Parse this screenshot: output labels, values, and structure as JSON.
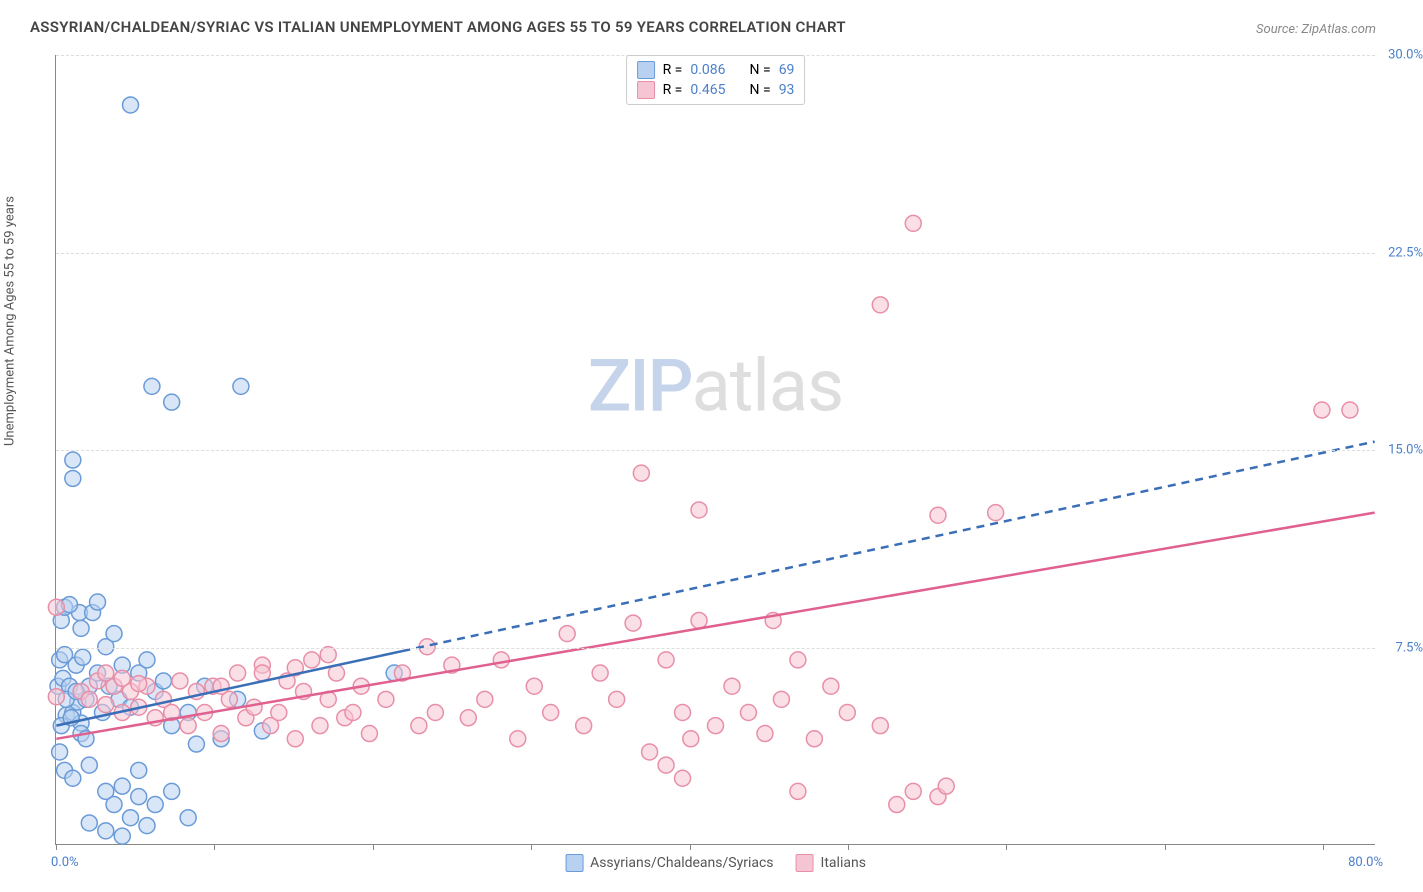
{
  "title": "ASSYRIAN/CHALDEAN/SYRIAC VS ITALIAN UNEMPLOYMENT AMONG AGES 55 TO 59 YEARS CORRELATION CHART",
  "source": "Source: ZipAtlas.com",
  "y_axis_title": "Unemployment Among Ages 55 to 59 years",
  "watermark_a": "ZIP",
  "watermark_b": "atlas",
  "chart": {
    "type": "scatter",
    "xlim": [
      0,
      80
    ],
    "ylim": [
      0,
      30
    ],
    "x_min_label": "0.0%",
    "x_max_label": "80.0%",
    "y_ticks": [
      7.5,
      15.0,
      22.5,
      30.0
    ],
    "y_tick_labels": [
      "7.5%",
      "15.0%",
      "22.5%",
      "30.0%"
    ],
    "x_tick_positions": [
      0,
      9.6,
      19.2,
      28.8,
      38.4,
      48,
      57.6,
      67.2,
      76.8
    ],
    "background_color": "#ffffff",
    "grid_color": "#dddddd",
    "axis_color": "#888888",
    "tick_label_color": "#4a7fc9",
    "marker_radius": 8,
    "marker_stroke_width": 1.5,
    "series": [
      {
        "name": "Assyrians/Chaldeans/Syriacs",
        "legend_label": "Assyrians/Chaldeans/Syriacs",
        "fill_color": "#b8d1f0",
        "fill_opacity": 0.55,
        "stroke_color": "#6a9bd8",
        "line_color": "#3a6fb8",
        "line_width": 2.5,
        "line_dash": "8 6",
        "R": "0.086",
        "N": "69",
        "trend": {
          "x1": 0,
          "y1": 4.5,
          "x2": 80,
          "y2": 15.3,
          "solid_until_x": 21
        },
        "points": [
          [
            4.5,
            28.1
          ],
          [
            0.1,
            6.0
          ],
          [
            0.2,
            7.0
          ],
          [
            0.3,
            8.5
          ],
          [
            0.4,
            6.3
          ],
          [
            0.5,
            9.0
          ],
          [
            0.6,
            4.9
          ],
          [
            0.5,
            7.2
          ],
          [
            0.8,
            6.0
          ],
          [
            5.8,
            17.4
          ],
          [
            7.0,
            16.8
          ],
          [
            11.2,
            17.4
          ],
          [
            1.0,
            14.6
          ],
          [
            1.0,
            13.9
          ],
          [
            1.0,
            5.0
          ],
          [
            1.2,
            6.8
          ],
          [
            1.3,
            5.4
          ],
          [
            1.4,
            8.8
          ],
          [
            1.5,
            4.6
          ],
          [
            1.6,
            7.1
          ],
          [
            1.8,
            5.5
          ],
          [
            2.0,
            6.0
          ],
          [
            2.2,
            8.8
          ],
          [
            2.5,
            6.5
          ],
          [
            2.8,
            5.0
          ],
          [
            3.0,
            7.5
          ],
          [
            3.2,
            6.0
          ],
          [
            3.5,
            8.0
          ],
          [
            3.8,
            5.5
          ],
          [
            4.0,
            6.8
          ],
          [
            4.5,
            5.2
          ],
          [
            5.0,
            6.5
          ],
          [
            5.5,
            7.0
          ],
          [
            6.0,
            5.8
          ],
          [
            6.5,
            6.2
          ],
          [
            7.0,
            4.5
          ],
          [
            8.0,
            5.0
          ],
          [
            9.0,
            6.0
          ],
          [
            10.0,
            4.0
          ],
          [
            11.0,
            5.5
          ],
          [
            0.2,
            3.5
          ],
          [
            0.5,
            2.8
          ],
          [
            0.8,
            9.1
          ],
          [
            1.0,
            2.5
          ],
          [
            1.5,
            8.2
          ],
          [
            2.0,
            3.0
          ],
          [
            2.5,
            9.2
          ],
          [
            3.0,
            2.0
          ],
          [
            3.5,
            1.5
          ],
          [
            4.0,
            2.2
          ],
          [
            4.5,
            1.0
          ],
          [
            5.0,
            2.8
          ],
          [
            5.5,
            0.7
          ],
          [
            6.0,
            1.5
          ],
          [
            7.0,
            2.0
          ],
          [
            8.0,
            1.0
          ],
          [
            2.0,
            0.8
          ],
          [
            3.0,
            0.5
          ],
          [
            4.0,
            0.3
          ],
          [
            5.0,
            1.8
          ],
          [
            0.3,
            4.5
          ],
          [
            0.6,
            5.5
          ],
          [
            0.9,
            4.8
          ],
          [
            1.2,
            5.8
          ],
          [
            1.5,
            4.2
          ],
          [
            20.5,
            6.5
          ],
          [
            1.8,
            4.0
          ],
          [
            8.5,
            3.8
          ],
          [
            12.5,
            4.3
          ]
        ]
      },
      {
        "name": "Italians",
        "legend_label": "Italians",
        "fill_color": "#f5c5d3",
        "fill_opacity": 0.55,
        "stroke_color": "#e88fa8",
        "line_color": "#e06090",
        "line_width": 2.5,
        "line_dash": "none",
        "R": "0.465",
        "N": "93",
        "trend": {
          "x1": 0,
          "y1": 4.0,
          "x2": 80,
          "y2": 12.6
        },
        "points": [
          [
            52.0,
            23.6
          ],
          [
            50.0,
            20.5
          ],
          [
            76.8,
            16.5
          ],
          [
            78.5,
            16.5
          ],
          [
            35.5,
            14.1
          ],
          [
            39.0,
            12.7
          ],
          [
            53.5,
            12.5
          ],
          [
            57.0,
            12.6
          ],
          [
            0.0,
            9.0
          ],
          [
            0.0,
            5.6
          ],
          [
            1.5,
            5.8
          ],
          [
            2.0,
            5.5
          ],
          [
            2.5,
            6.2
          ],
          [
            3.0,
            5.3
          ],
          [
            3.5,
            6.0
          ],
          [
            4.0,
            5.0
          ],
          [
            4.5,
            5.8
          ],
          [
            5.0,
            5.2
          ],
          [
            5.5,
            6.0
          ],
          [
            6.0,
            4.8
          ],
          [
            6.5,
            5.5
          ],
          [
            7.0,
            5.0
          ],
          [
            7.5,
            6.2
          ],
          [
            8.0,
            4.5
          ],
          [
            8.5,
            5.8
          ],
          [
            9.0,
            5.0
          ],
          [
            9.5,
            6.0
          ],
          [
            10.0,
            4.2
          ],
          [
            10.5,
            5.5
          ],
          [
            11.0,
            6.5
          ],
          [
            11.5,
            4.8
          ],
          [
            12.0,
            5.2
          ],
          [
            12.5,
            6.8
          ],
          [
            13.0,
            4.5
          ],
          [
            13.5,
            5.0
          ],
          [
            14.0,
            6.2
          ],
          [
            14.5,
            4.0
          ],
          [
            15.0,
            5.8
          ],
          [
            15.5,
            7.0
          ],
          [
            16.0,
            4.5
          ],
          [
            16.5,
            5.5
          ],
          [
            17.0,
            6.5
          ],
          [
            17.5,
            4.8
          ],
          [
            18.0,
            5.0
          ],
          [
            18.5,
            6.0
          ],
          [
            19.0,
            4.2
          ],
          [
            20.0,
            5.5
          ],
          [
            21.0,
            6.5
          ],
          [
            22.0,
            4.5
          ],
          [
            22.5,
            7.5
          ],
          [
            23.0,
            5.0
          ],
          [
            24.0,
            6.8
          ],
          [
            25.0,
            4.8
          ],
          [
            26.0,
            5.5
          ],
          [
            27.0,
            7.0
          ],
          [
            28.0,
            4.0
          ],
          [
            29.0,
            6.0
          ],
          [
            30.0,
            5.0
          ],
          [
            31.0,
            8.0
          ],
          [
            32.0,
            4.5
          ],
          [
            33.0,
            6.5
          ],
          [
            34.0,
            5.5
          ],
          [
            35.0,
            8.4
          ],
          [
            36.0,
            3.5
          ],
          [
            37.0,
            7.0
          ],
          [
            38.0,
            5.0
          ],
          [
            38.5,
            4.0
          ],
          [
            39.0,
            8.5
          ],
          [
            40.0,
            4.5
          ],
          [
            41.0,
            6.0
          ],
          [
            42.0,
            5.0
          ],
          [
            43.0,
            4.2
          ],
          [
            43.5,
            8.5
          ],
          [
            44.0,
            5.5
          ],
          [
            45.0,
            7.0
          ],
          [
            46.0,
            4.0
          ],
          [
            47.0,
            6.0
          ],
          [
            48.0,
            5.0
          ],
          [
            50.0,
            4.5
          ],
          [
            51.0,
            1.5
          ],
          [
            52.0,
            2.0
          ],
          [
            37.0,
            3.0
          ],
          [
            38.0,
            2.5
          ],
          [
            45.0,
            2.0
          ],
          [
            53.5,
            1.8
          ],
          [
            54.0,
            2.2
          ],
          [
            16.5,
            7.2
          ],
          [
            14.5,
            6.7
          ],
          [
            12.5,
            6.5
          ],
          [
            10.0,
            6.0
          ],
          [
            3.0,
            6.5
          ],
          [
            4.0,
            6.3
          ],
          [
            5.0,
            6.1
          ]
        ]
      }
    ]
  },
  "legend_top": {
    "r_label": "R =",
    "n_label": "N ="
  }
}
